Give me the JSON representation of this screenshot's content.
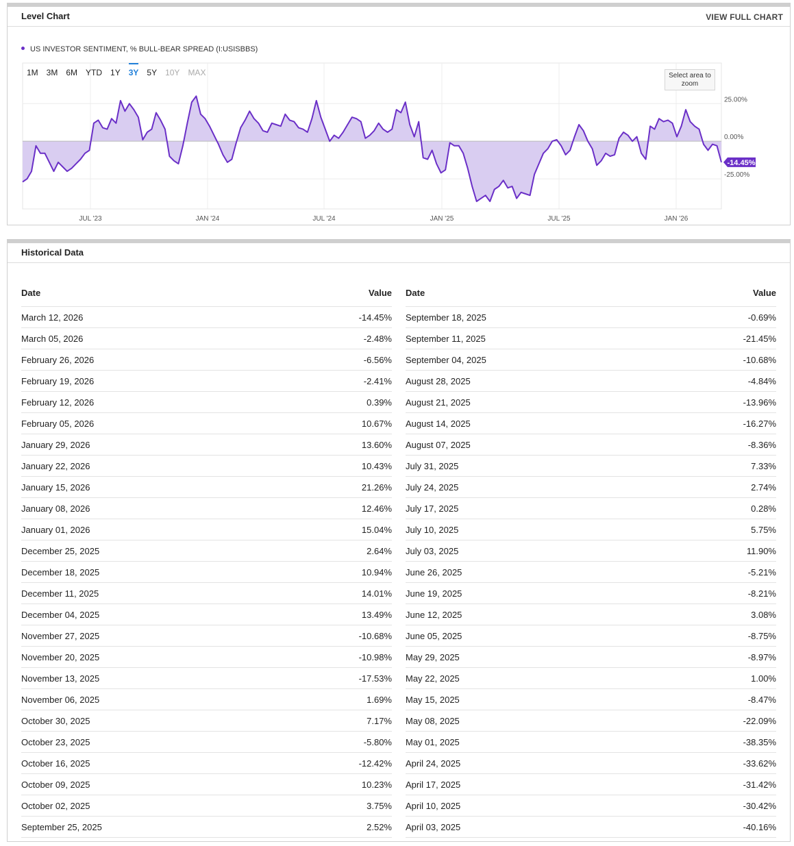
{
  "chart_panel": {
    "title": "Level Chart",
    "link": "VIEW FULL CHART",
    "legend": "US INVESTOR SENTIMENT, % BULL-BEAR SPREAD (I:USISBBS)",
    "ranges": [
      "1M",
      "3M",
      "6M",
      "YTD",
      "1Y",
      "3Y",
      "5Y",
      "10Y",
      "MAX"
    ],
    "active_range": "3Y",
    "disabled_ranges": [
      "10Y",
      "MAX"
    ],
    "zoom_hint": "Select area to zoom",
    "current_value": "-14.45%"
  },
  "chart_data": {
    "type": "area",
    "series": [
      {
        "values": [
          -27,
          -25,
          -20,
          -3,
          -8,
          -8,
          -14,
          -20,
          -14,
          -17,
          -20,
          -18,
          -15,
          -12,
          -8,
          -6,
          12,
          14,
          9,
          8,
          15,
          12,
          27,
          20,
          25,
          21,
          16,
          1,
          6,
          8,
          19,
          14,
          8,
          -10,
          -13,
          -15,
          -3,
          12,
          26,
          30,
          18,
          15,
          10,
          4,
          -2,
          -9,
          -14,
          -12,
          -1,
          9,
          14,
          20,
          15,
          12,
          7,
          6,
          12,
          11,
          10,
          18,
          14,
          13,
          9,
          8,
          6,
          15,
          27,
          16,
          8,
          0,
          4,
          2,
          6,
          11,
          16,
          15,
          13,
          2,
          4,
          7,
          12,
          8,
          6,
          8,
          21,
          19,
          26,
          11,
          3,
          13,
          -11,
          -12,
          -6,
          -15,
          -21,
          -19,
          -1,
          -3,
          -3,
          -8,
          -18,
          -30,
          -40,
          -38,
          -36,
          -40,
          -32,
          -30,
          -26,
          -31,
          -30,
          -38,
          -34,
          -35,
          -36,
          -22,
          -15,
          -8,
          -5,
          0,
          1,
          -3,
          -9,
          -6,
          3,
          11,
          7,
          0,
          -5,
          -16,
          -13,
          -8,
          -10,
          -9,
          2,
          6,
          4,
          0,
          3,
          -8,
          -12,
          10,
          8,
          15,
          13,
          14,
          12,
          3,
          10,
          21,
          13,
          10,
          8,
          -2,
          -6,
          -2,
          -3,
          -14
        ]
      }
    ],
    "x_ticks": [
      "JUL '23",
      "JAN '24",
      "JUL '24",
      "JAN '25",
      "JUL '25",
      "JAN '26"
    ],
    "y_ticks": [
      "25.00%",
      "0.00%",
      "-25.00%"
    ],
    "ylim": [
      -45,
      52
    ],
    "grid": true
  },
  "hist_panel": {
    "title": "Historical Data",
    "headers": {
      "date": "Date",
      "value": "Value"
    },
    "left": [
      {
        "date": "March 12, 2026",
        "value": "-14.45%"
      },
      {
        "date": "March 05, 2026",
        "value": "-2.48%"
      },
      {
        "date": "February 26, 2026",
        "value": "-6.56%"
      },
      {
        "date": "February 19, 2026",
        "value": "-2.41%"
      },
      {
        "date": "February 12, 2026",
        "value": "0.39%"
      },
      {
        "date": "February 05, 2026",
        "value": "10.67%"
      },
      {
        "date": "January 29, 2026",
        "value": "13.60%"
      },
      {
        "date": "January 22, 2026",
        "value": "10.43%"
      },
      {
        "date": "January 15, 2026",
        "value": "21.26%"
      },
      {
        "date": "January 08, 2026",
        "value": "12.46%"
      },
      {
        "date": "January 01, 2026",
        "value": "15.04%"
      },
      {
        "date": "December 25, 2025",
        "value": "2.64%"
      },
      {
        "date": "December 18, 2025",
        "value": "10.94%"
      },
      {
        "date": "December 11, 2025",
        "value": "14.01%"
      },
      {
        "date": "December 04, 2025",
        "value": "13.49%"
      },
      {
        "date": "November 27, 2025",
        "value": "-10.68%"
      },
      {
        "date": "November 20, 2025",
        "value": "-10.98%"
      },
      {
        "date": "November 13, 2025",
        "value": "-17.53%"
      },
      {
        "date": "November 06, 2025",
        "value": "1.69%"
      },
      {
        "date": "October 30, 2025",
        "value": "7.17%"
      },
      {
        "date": "October 23, 2025",
        "value": "-5.80%"
      },
      {
        "date": "October 16, 2025",
        "value": "-12.42%"
      },
      {
        "date": "October 09, 2025",
        "value": "10.23%"
      },
      {
        "date": "October 02, 2025",
        "value": "3.75%"
      },
      {
        "date": "September 25, 2025",
        "value": "2.52%"
      }
    ],
    "right": [
      {
        "date": "September 18, 2025",
        "value": "-0.69%"
      },
      {
        "date": "September 11, 2025",
        "value": "-21.45%"
      },
      {
        "date": "September 04, 2025",
        "value": "-10.68%"
      },
      {
        "date": "August 28, 2025",
        "value": "-4.84%"
      },
      {
        "date": "August 21, 2025",
        "value": "-13.96%"
      },
      {
        "date": "August 14, 2025",
        "value": "-16.27%"
      },
      {
        "date": "August 07, 2025",
        "value": "-8.36%"
      },
      {
        "date": "July 31, 2025",
        "value": "7.33%"
      },
      {
        "date": "July 24, 2025",
        "value": "2.74%"
      },
      {
        "date": "July 17, 2025",
        "value": "0.28%"
      },
      {
        "date": "July 10, 2025",
        "value": "5.75%"
      },
      {
        "date": "July 03, 2025",
        "value": "11.90%"
      },
      {
        "date": "June 26, 2025",
        "value": "-5.21%"
      },
      {
        "date": "June 19, 2025",
        "value": "-8.21%"
      },
      {
        "date": "June 12, 2025",
        "value": "3.08%"
      },
      {
        "date": "June 05, 2025",
        "value": "-8.75%"
      },
      {
        "date": "May 29, 2025",
        "value": "-8.97%"
      },
      {
        "date": "May 22, 2025",
        "value": "1.00%"
      },
      {
        "date": "May 15, 2025",
        "value": "-8.47%"
      },
      {
        "date": "May 08, 2025",
        "value": "-22.09%"
      },
      {
        "date": "May 01, 2025",
        "value": "-38.35%"
      },
      {
        "date": "April 24, 2025",
        "value": "-33.62%"
      },
      {
        "date": "April 17, 2025",
        "value": "-31.42%"
      },
      {
        "date": "April 10, 2025",
        "value": "-30.42%"
      },
      {
        "date": "April 03, 2025",
        "value": "-40.16%"
      }
    ]
  },
  "colors": {
    "line": "#6a2fc7",
    "fill": "#d9cdf1",
    "active_range": "#1f7fd9",
    "grid": "#e6e6e6"
  }
}
